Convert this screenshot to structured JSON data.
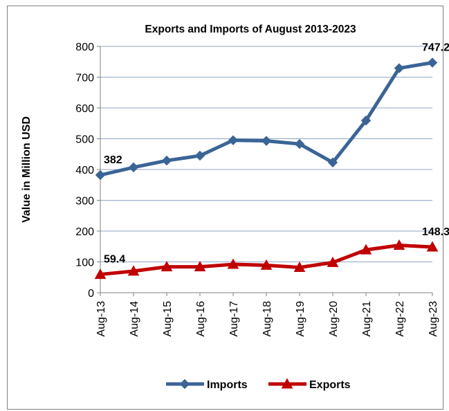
{
  "chart_data": {
    "type": "line",
    "title": "Exports and Imports of August 2013-2023",
    "ylabel": "Value in  Million  USD",
    "xlabel": "",
    "categories": [
      "Aug-13",
      "Aug-14",
      "Aug-15",
      "Aug-16",
      "Aug-17",
      "Aug-18",
      "Aug-19",
      "Aug-20",
      "Aug-21",
      "Aug-22",
      "Aug-23"
    ],
    "ylim": [
      0,
      800
    ],
    "yticks": [
      0,
      100,
      200,
      300,
      400,
      500,
      600,
      700,
      800
    ],
    "grid": true,
    "legend_position": "bottom",
    "series": [
      {
        "name": "Imports",
        "color": "#3b6496",
        "marker": "diamond",
        "values": [
          382,
          407,
          429,
          445,
          495,
          493,
          483,
          423,
          559,
          729,
          747.2
        ],
        "data_labels": {
          "0": "382",
          "10": "747.2"
        }
      },
      {
        "name": "Exports",
        "color": "#c00000",
        "marker": "triangle",
        "values": [
          59.4,
          70,
          84,
          84,
          92,
          89,
          82,
          98,
          139,
          154,
          148.3
        ],
        "data_labels": {
          "0": "59.4",
          "10": "148.3"
        }
      }
    ]
  }
}
